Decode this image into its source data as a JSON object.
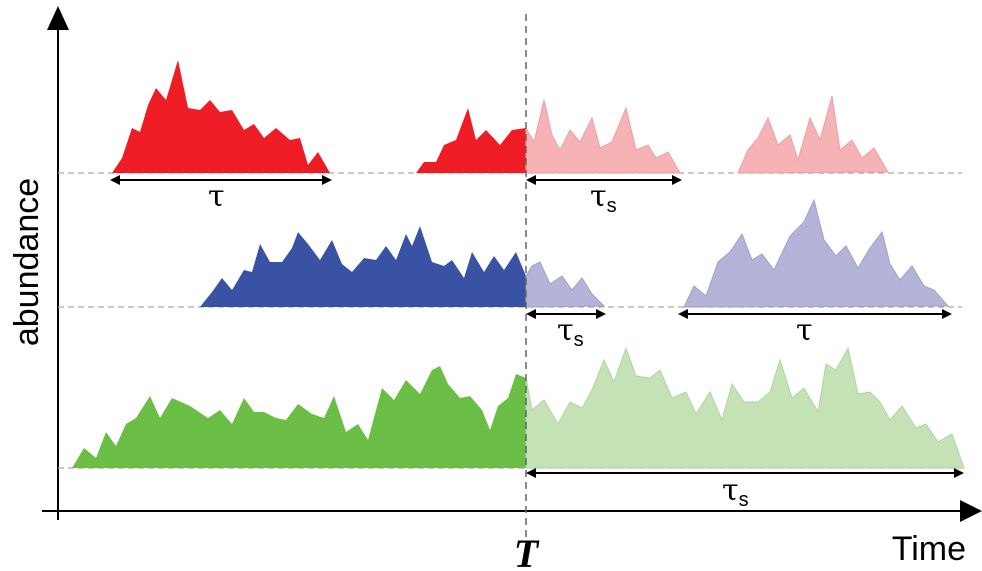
{
  "axes": {
    "y_label": "abundance",
    "x_label": "Time",
    "t_label": "T"
  },
  "spans": {
    "red_1": {
      "symbol": "τ",
      "subscript": ""
    },
    "red_2": {
      "symbol": "τ",
      "subscript": "s"
    },
    "blue_1": {
      "symbol": "τ",
      "subscript": "s"
    },
    "blue_2": {
      "symbol": "τ",
      "subscript": ""
    },
    "green_1": {
      "symbol": "τ",
      "subscript": "s"
    }
  },
  "colors": {
    "red": "#ee1c24",
    "red_light": "#f5b3b6",
    "blue": "#3a52a4",
    "blue_light": "#b4b4d8",
    "green": "#6abd45",
    "green_light": "#c4e2b5",
    "axis": "#000000",
    "guide": "#999999"
  }
}
